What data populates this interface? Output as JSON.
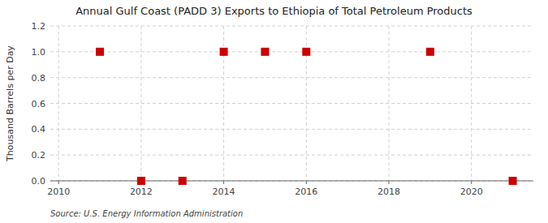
{
  "chart_data": {
    "type": "scatter",
    "title": "Annual Gulf Coast (PADD 3) Exports to Ethiopia of Total Petroleum Products",
    "ylabel": "Thousand Barrels per Day",
    "source": "Source: U.S. Energy Information Administration",
    "x": [
      2011,
      2012,
      2013,
      2014,
      2015,
      2016,
      2019,
      2021
    ],
    "values": [
      1.0,
      0.0,
      0.0,
      1.0,
      1.0,
      1.0,
      1.0,
      0.0
    ],
    "color": "#cc0000",
    "marker": "square",
    "xlim": [
      2009.8,
      2021.5
    ],
    "ylim": [
      0.0,
      1.2
    ],
    "xticks": [
      2010,
      2012,
      2014,
      2016,
      2018,
      2020
    ],
    "yticks": [
      {
        "value": 0.0,
        "label": "0.0"
      },
      0.2,
      0.4,
      0.6,
      0.8,
      {
        "value": 1.0,
        "label": "1.0"
      },
      1.2
    ],
    "grid": true
  }
}
